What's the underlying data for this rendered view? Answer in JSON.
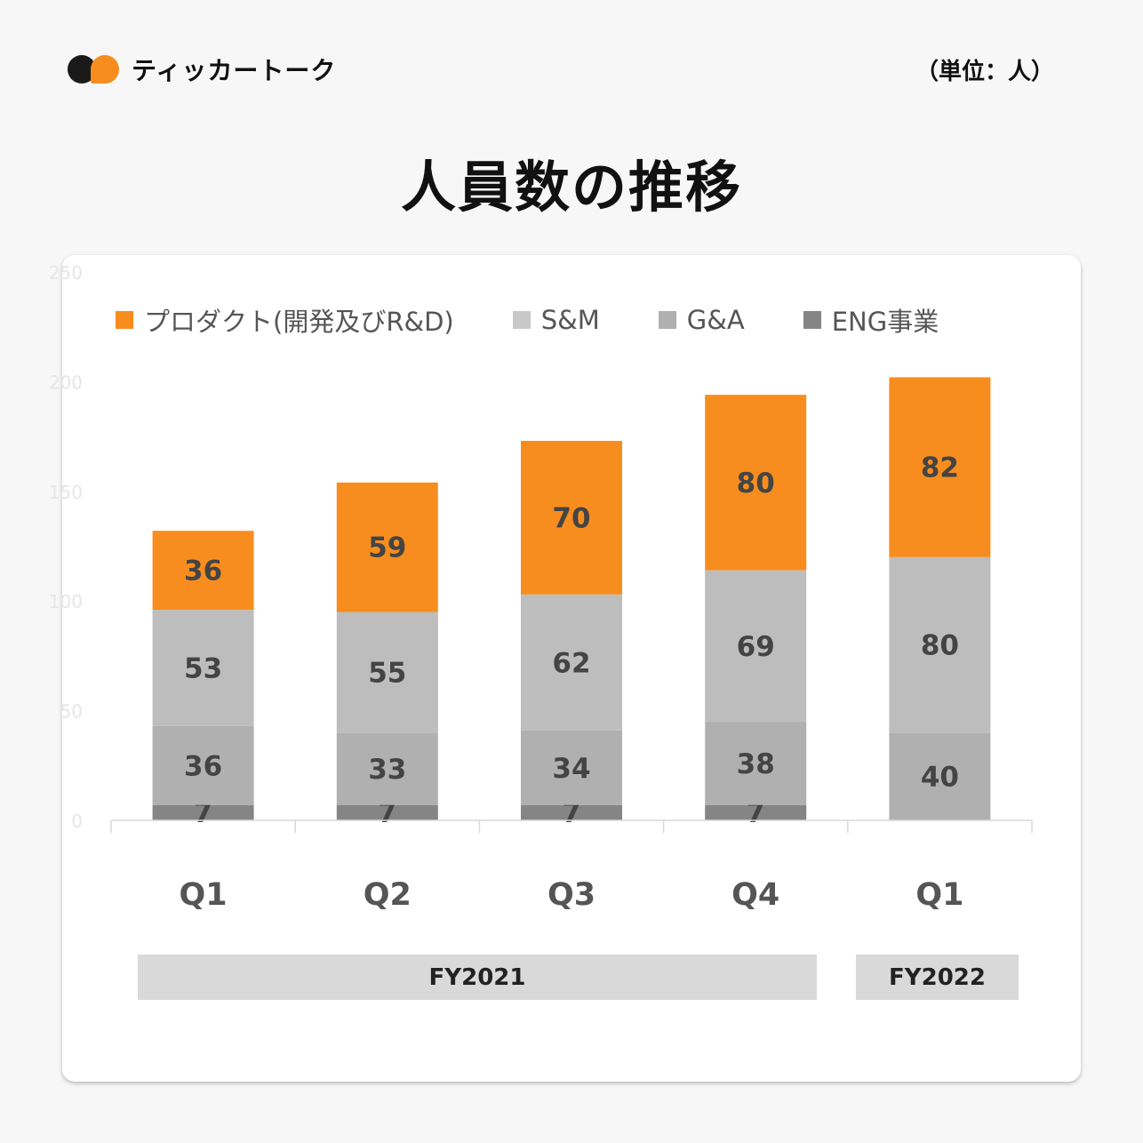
{
  "header": {
    "logo_text": "ティッカートーク",
    "unit": "（単位：人）",
    "title": "人員数の推移"
  },
  "colors": {
    "product": "#f78d1e",
    "sm": "#bdbdbd",
    "ga": "#b0b0b0",
    "eng": "#858585"
  },
  "chart_data": {
    "type": "bar",
    "stacked": true,
    "categories": [
      "Q1",
      "Q2",
      "Q3",
      "Q4",
      "Q1"
    ],
    "series": [
      {
        "name": "ENG事業",
        "values": [
          7,
          7,
          7,
          7,
          0
        ],
        "color": "#858585"
      },
      {
        "name": "G&A",
        "values": [
          36,
          33,
          34,
          38,
          40
        ],
        "color": "#b0b0b0"
      },
      {
        "name": "S&M",
        "values": [
          53,
          55,
          62,
          69,
          80
        ],
        "color": "#bdbdbd"
      },
      {
        "name": "プロダクト(開発及びR&D)",
        "values": [
          36,
          59,
          70,
          80,
          82
        ],
        "color": "#f78d1e"
      }
    ],
    "ylim": [
      0,
      250
    ],
    "yticks": [
      "0",
      "50",
      "100",
      "150",
      "200",
      "250"
    ],
    "legend": [
      "プロダクト(開発及びR&D)",
      "S&M",
      "G&A",
      "ENG事業"
    ],
    "groups": [
      {
        "label": "FY2021",
        "categories": [
          0,
          1,
          2,
          3
        ]
      },
      {
        "label": "FY2022",
        "categories": [
          4
        ]
      }
    ]
  }
}
